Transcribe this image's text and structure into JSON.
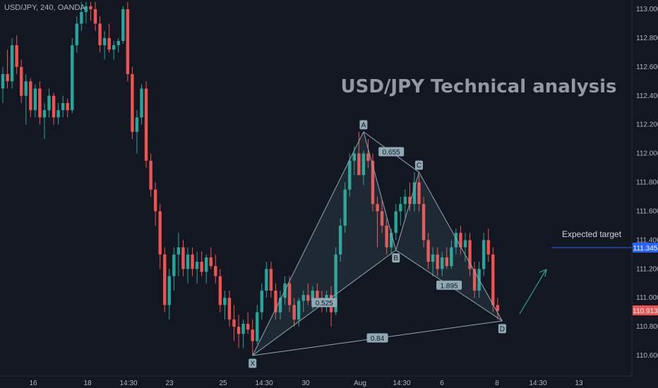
{
  "chart_data": {
    "type": "candlestick",
    "symbol_header": "USD/JPY, 240, OANDA",
    "title": "USD/JPY Technical analysis",
    "ylim": [
      110.5,
      113.05
    ],
    "y_ticks": [
      "113.000",
      "112.800",
      "112.600",
      "112.400",
      "112.200",
      "112.000",
      "111.800",
      "111.600",
      "111.400",
      "111.200",
      "111.000",
      "110.800",
      "110.600"
    ],
    "x_ticks": [
      "16",
      "18",
      "14:30",
      "23",
      "25",
      "14:30",
      "30",
      "Aug",
      "14:30",
      "6",
      "8",
      "14:30",
      "13"
    ],
    "current_price": {
      "label": "110.913",
      "value": 110.913,
      "color": "#ef5350"
    },
    "target": {
      "text": "Expected target",
      "label": "111.345",
      "value": 111.345,
      "color": "#2962ff"
    },
    "harmonic": {
      "points": [
        {
          "name": "X",
          "bar": 54,
          "price": 110.6
        },
        {
          "name": "A",
          "bar": 78,
          "price": 112.15
        },
        {
          "name": "B",
          "bar": 85,
          "price": 111.33
        },
        {
          "name": "C",
          "bar": 90,
          "price": 111.87
        },
        {
          "name": "D",
          "bar": 108,
          "price": 110.84
        }
      ],
      "ratios": [
        {
          "label": "0.655"
        },
        {
          "label": "0.525"
        },
        {
          "label": "1.895"
        },
        {
          "label": "0.84"
        }
      ]
    },
    "candles_ohlc": [
      [
        112.45,
        112.6,
        112.35,
        112.55
      ],
      [
        112.55,
        112.72,
        112.45,
        112.5
      ],
      [
        112.5,
        112.8,
        112.45,
        112.75
      ],
      [
        112.75,
        112.82,
        112.55,
        112.6
      ],
      [
        112.6,
        112.65,
        112.35,
        112.4
      ],
      [
        112.4,
        112.55,
        112.2,
        112.5
      ],
      [
        112.5,
        112.52,
        112.25,
        112.3
      ],
      [
        112.3,
        112.48,
        112.25,
        112.45
      ],
      [
        112.45,
        112.5,
        112.2,
        112.25
      ],
      [
        112.25,
        112.35,
        112.1,
        112.3
      ],
      [
        112.3,
        112.45,
        112.25,
        112.4
      ],
      [
        112.4,
        112.42,
        112.2,
        112.25
      ],
      [
        112.25,
        112.35,
        112.2,
        112.3
      ],
      [
        112.3,
        112.4,
        112.25,
        112.35
      ],
      [
        112.35,
        112.38,
        112.25,
        112.3
      ],
      [
        112.3,
        112.8,
        112.28,
        112.75
      ],
      [
        112.75,
        112.95,
        112.7,
        112.9
      ],
      [
        112.9,
        113.05,
        112.85,
        112.98
      ],
      [
        112.98,
        113.05,
        112.9,
        113.02
      ],
      [
        113.02,
        113.05,
        112.92,
        113.0
      ],
      [
        113.0,
        113.05,
        112.85,
        112.9
      ],
      [
        112.9,
        112.95,
        112.7,
        112.75
      ],
      [
        112.75,
        112.85,
        112.65,
        112.8
      ],
      [
        112.8,
        112.9,
        112.7,
        112.72
      ],
      [
        112.72,
        112.78,
        112.65,
        112.75
      ],
      [
        112.75,
        112.8,
        112.7,
        112.78
      ],
      [
        112.78,
        113.02,
        112.76,
        113.0
      ],
      [
        113.0,
        113.05,
        112.5,
        112.55
      ],
      [
        112.55,
        112.6,
        112.1,
        112.15
      ],
      [
        112.15,
        112.3,
        112.0,
        112.25
      ],
      [
        112.25,
        112.48,
        112.2,
        112.45
      ],
      [
        112.45,
        112.5,
        111.9,
        111.95
      ],
      [
        111.95,
        112.0,
        111.7,
        111.75
      ],
      [
        111.75,
        111.8,
        111.5,
        111.6
      ],
      [
        111.6,
        111.65,
        111.2,
        111.3
      ],
      [
        111.3,
        111.35,
        110.9,
        110.95
      ],
      [
        110.95,
        111.2,
        110.85,
        111.15
      ],
      [
        111.15,
        111.35,
        111.05,
        111.3
      ],
      [
        111.3,
        111.45,
        111.15,
        111.35
      ],
      [
        111.35,
        111.4,
        111.15,
        111.2
      ],
      [
        111.2,
        111.35,
        111.1,
        111.3
      ],
      [
        111.3,
        111.35,
        111.15,
        111.2
      ],
      [
        111.2,
        111.32,
        111.1,
        111.25
      ],
      [
        111.25,
        111.32,
        111.15,
        111.18
      ],
      [
        111.18,
        111.3,
        111.1,
        111.28
      ],
      [
        111.28,
        111.35,
        111.2,
        111.22
      ],
      [
        111.22,
        111.3,
        111.1,
        111.15
      ],
      [
        111.15,
        111.2,
        110.9,
        110.95
      ],
      [
        110.95,
        111.05,
        110.85,
        111.0
      ],
      [
        111.0,
        111.05,
        110.8,
        110.85
      ],
      [
        110.85,
        110.95,
        110.7,
        110.8
      ],
      [
        110.8,
        110.88,
        110.65,
        110.75
      ],
      [
        110.75,
        110.85,
        110.65,
        110.82
      ],
      [
        110.82,
        110.9,
        110.75,
        110.78
      ],
      [
        110.78,
        110.85,
        110.6,
        110.7
      ],
      [
        110.7,
        110.95,
        110.68,
        110.9
      ],
      [
        110.9,
        111.1,
        110.85,
        111.05
      ],
      [
        111.05,
        111.25,
        111.0,
        111.2
      ],
      [
        111.2,
        111.25,
        111.0,
        111.05
      ],
      [
        111.05,
        111.1,
        110.85,
        110.9
      ],
      [
        110.9,
        111.05,
        110.85,
        111.0
      ],
      [
        111.0,
        111.15,
        110.95,
        111.1
      ],
      [
        111.1,
        111.15,
        110.9,
        110.95
      ],
      [
        110.95,
        111.0,
        110.8,
        110.85
      ],
      [
        110.85,
        111.0,
        110.8,
        110.98
      ],
      [
        110.98,
        111.05,
        110.9,
        111.02
      ],
      [
        111.02,
        111.1,
        110.95,
        110.98
      ],
      [
        110.98,
        111.08,
        110.92,
        111.05
      ],
      [
        111.05,
        111.1,
        110.95,
        111.0
      ],
      [
        111.0,
        111.05,
        110.9,
        110.95
      ],
      [
        110.95,
        111.05,
        110.9,
        111.02
      ],
      [
        111.02,
        111.08,
        110.8,
        110.9
      ],
      [
        110.9,
        111.35,
        110.88,
        111.3
      ],
      [
        111.3,
        111.55,
        111.25,
        111.5
      ],
      [
        111.5,
        111.8,
        111.45,
        111.75
      ],
      [
        111.75,
        112.0,
        111.7,
        111.95
      ],
      [
        111.95,
        112.05,
        111.85,
        112.0
      ],
      [
        112.0,
        112.15,
        111.9,
        111.85
      ],
      [
        111.85,
        112.02,
        111.78,
        112.0
      ],
      [
        112.0,
        112.1,
        111.9,
        111.95
      ],
      [
        111.95,
        112.0,
        111.6,
        111.65
      ],
      [
        111.65,
        111.7,
        111.35,
        111.6
      ],
      [
        111.6,
        111.68,
        111.45,
        111.5
      ],
      [
        111.5,
        111.55,
        111.3,
        111.35
      ],
      [
        111.35,
        111.48,
        111.3,
        111.45
      ],
      [
        111.45,
        111.65,
        111.4,
        111.6
      ],
      [
        111.6,
        111.7,
        111.5,
        111.65
      ],
      [
        111.65,
        111.75,
        111.55,
        111.7
      ],
      [
        111.7,
        111.8,
        111.6,
        111.65
      ],
      [
        111.65,
        111.87,
        111.6,
        111.8
      ],
      [
        111.8,
        111.85,
        111.6,
        111.65
      ],
      [
        111.65,
        111.7,
        111.35,
        111.4
      ],
      [
        111.4,
        111.45,
        111.2,
        111.25
      ],
      [
        111.25,
        111.35,
        111.15,
        111.3
      ],
      [
        111.3,
        111.35,
        111.15,
        111.2
      ],
      [
        111.2,
        111.32,
        111.15,
        111.28
      ],
      [
        111.28,
        111.35,
        111.2,
        111.22
      ],
      [
        111.22,
        111.4,
        111.2,
        111.35
      ],
      [
        111.35,
        111.48,
        111.3,
        111.45
      ],
      [
        111.45,
        111.5,
        111.3,
        111.35
      ],
      [
        111.35,
        111.45,
        111.25,
        111.4
      ],
      [
        111.4,
        111.45,
        111.15,
        111.2
      ],
      [
        111.2,
        111.25,
        111.0,
        111.05
      ],
      [
        111.05,
        111.25,
        111.0,
        111.2
      ],
      [
        111.2,
        111.45,
        111.15,
        111.4
      ],
      [
        111.4,
        111.48,
        111.25,
        111.3
      ],
      [
        111.3,
        111.35,
        110.9,
        110.95
      ],
      [
        110.95,
        111.0,
        110.85,
        110.91
      ]
    ]
  }
}
